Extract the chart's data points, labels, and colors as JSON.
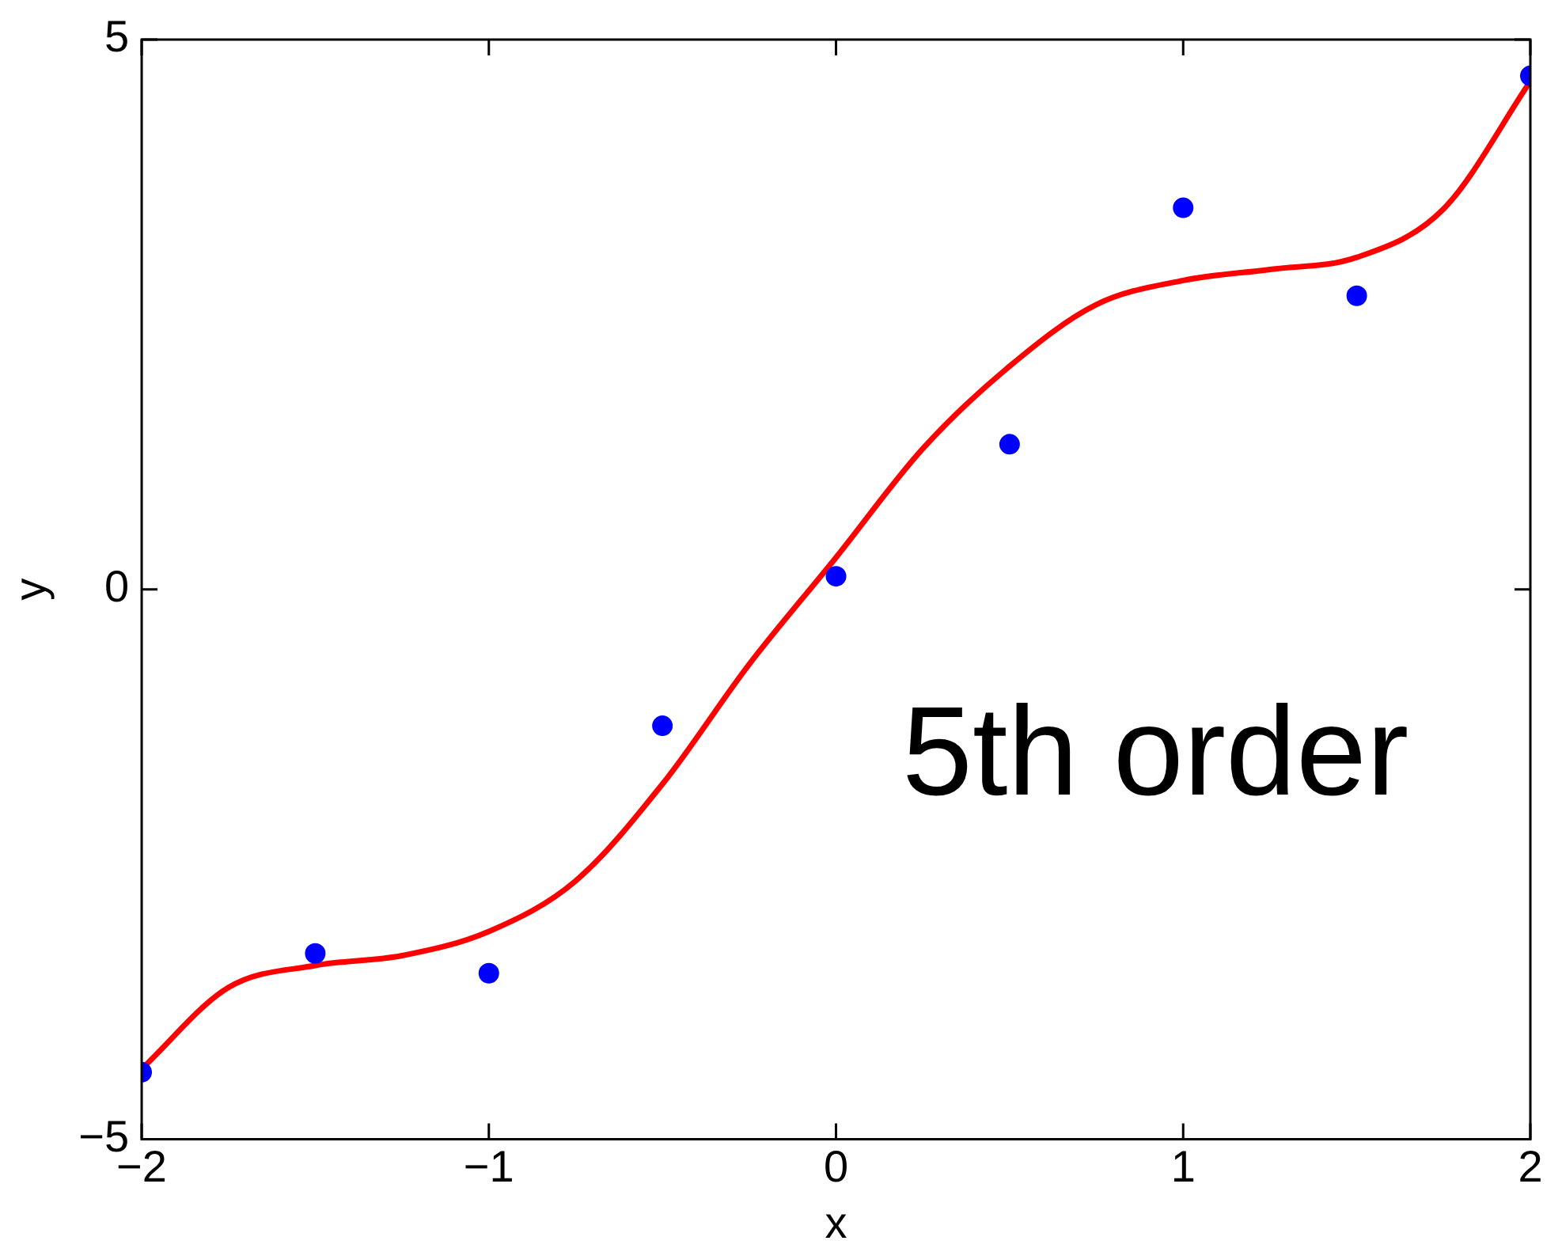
{
  "chart_data": {
    "type": "scatter",
    "xlabel": "x",
    "ylabel": "y",
    "annotations": [
      "5th order"
    ],
    "xlim": [
      -2,
      2
    ],
    "ylim": [
      -5,
      5
    ],
    "xticks": [
      -2,
      -1,
      0,
      1,
      2
    ],
    "yticks": [
      -5,
      0,
      5
    ],
    "grid": false,
    "legend": false,
    "marker": "circle",
    "series": [
      {
        "type": "scatter",
        "color": "#0000ff",
        "x": [
          -2,
          -1.5,
          -1,
          -0.5,
          0,
          0.5,
          1,
          1.5,
          2
        ],
        "values": [
          -4.39,
          -3.31,
          -3.49,
          -1.24,
          0.12,
          1.32,
          3.47,
          2.67,
          4.67
        ]
      },
      {
        "type": "line",
        "color": "#ff0000",
        "marker": "none",
        "line_style": "solid",
        "x": [
          -2,
          -1.75,
          -1.5,
          -1.25,
          -1,
          -0.75,
          -0.5,
          -0.25,
          0,
          0.25,
          0.5,
          0.75,
          1,
          1.25,
          1.5,
          1.75,
          2
        ],
        "values": [
          -4.36,
          -3.62,
          -3.42,
          -3.33,
          -3.11,
          -2.65,
          -1.77,
          -0.68,
          0.29,
          1.28,
          2.03,
          2.59,
          2.81,
          2.91,
          3.02,
          3.46,
          4.62
        ]
      }
    ]
  }
}
